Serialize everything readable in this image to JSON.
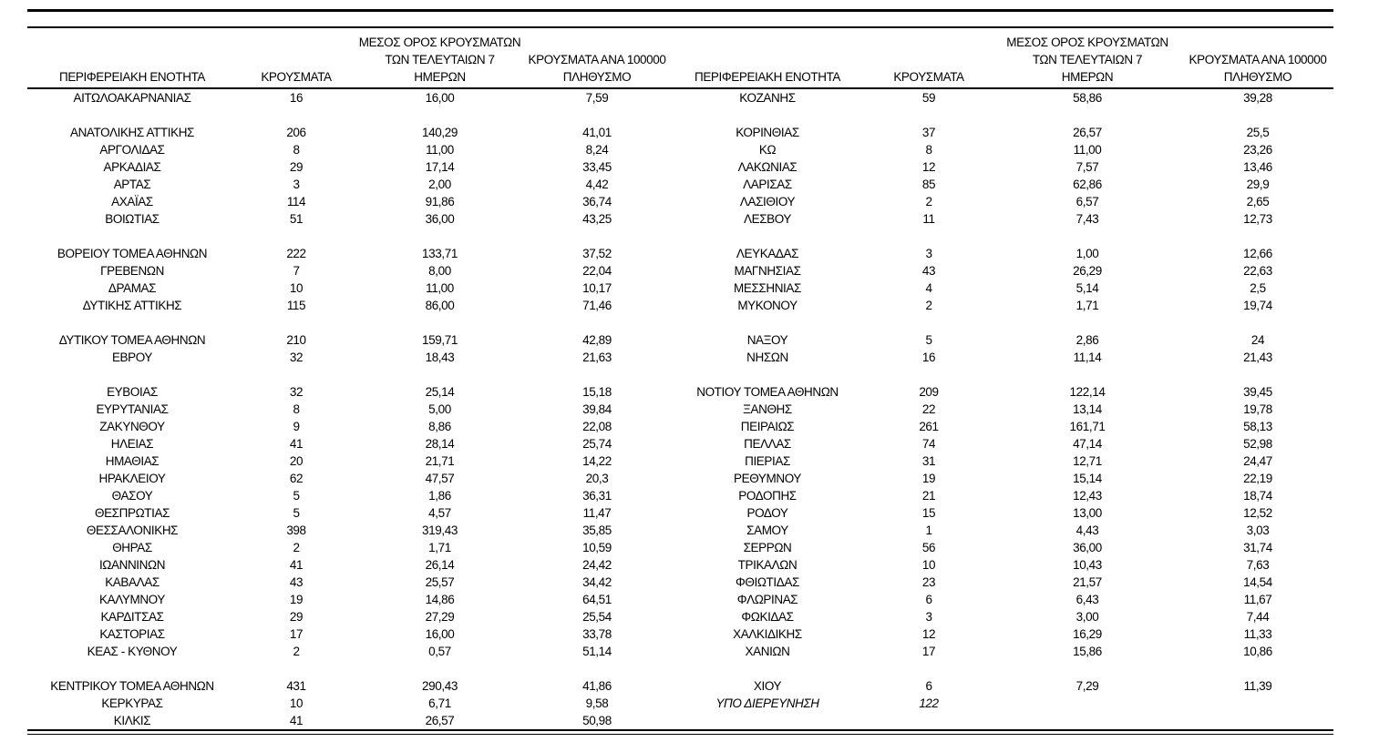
{
  "page": {
    "background_color": "#ffffff",
    "text_color": "#000000"
  },
  "table": {
    "headers": {
      "region": "ΠΕΡΙΦΕΡΕΙΑΚΗ ΕΝΟΤΗΤΑ",
      "cases": "ΚΡΟΥΣΜΑΤΑ",
      "avg7_line1": "ΜΕΣΟΣ ΟΡΟΣ ΚΡΟΥΣΜΑΤΩΝ",
      "avg7_line2": "ΤΩΝ ΤΕΛΕΥΤΑΙΩΝ 7",
      "avg7_line3": "ΗΜΕΡΩΝ",
      "per100k_line1": "ΚΡΟΥΣΜΑΤΑ ΑΝΑ 100000",
      "per100k_line2": "ΠΛΗΘΥΣΜΟ"
    },
    "rows": [
      {
        "left": [
          "ΑΙΤΩΛΟΑΚΑΡΝΑΝΙΑΣ",
          "16",
          "16,00",
          "7,59"
        ],
        "right": [
          "ΚΟΖΑΝΗΣ",
          "59",
          "58,86",
          "39,28"
        ]
      },
      {
        "left": null,
        "right": null
      },
      {
        "left": [
          "ΑΝΑΤΟΛΙΚΗΣ ΑΤΤΙΚΗΣ",
          "206",
          "140,29",
          "41,01"
        ],
        "right": [
          "ΚΟΡΙΝΘΙΑΣ",
          "37",
          "26,57",
          "25,5"
        ]
      },
      {
        "left": [
          "ΑΡΓΟΛΙΔΑΣ",
          "8",
          "11,00",
          "8,24"
        ],
        "right": [
          "ΚΩ",
          "8",
          "11,00",
          "23,26"
        ]
      },
      {
        "left": [
          "ΑΡΚΑΔΙΑΣ",
          "29",
          "17,14",
          "33,45"
        ],
        "right": [
          "ΛΑΚΩΝΙΑΣ",
          "12",
          "7,57",
          "13,46"
        ]
      },
      {
        "left": [
          "ΑΡΤΑΣ",
          "3",
          "2,00",
          "4,42"
        ],
        "right": [
          "ΛΑΡΙΣΑΣ",
          "85",
          "62,86",
          "29,9"
        ]
      },
      {
        "left": [
          "ΑΧΑΪΑΣ",
          "114",
          "91,86",
          "36,74"
        ],
        "right": [
          "ΛΑΣΙΘΙΟΥ",
          "2",
          "6,57",
          "2,65"
        ]
      },
      {
        "left": [
          "ΒΟΙΩΤΙΑΣ",
          "51",
          "36,00",
          "43,25"
        ],
        "right": [
          "ΛΕΣΒΟΥ",
          "11",
          "7,43",
          "12,73"
        ]
      },
      {
        "left": null,
        "right": null
      },
      {
        "left": [
          "ΒΟΡΕΙΟΥ ΤΟΜΕΑ ΑΘΗΝΩΝ",
          "222",
          "133,71",
          "37,52"
        ],
        "right": [
          "ΛΕΥΚΑΔΑΣ",
          "3",
          "1,00",
          "12,66"
        ]
      },
      {
        "left": [
          "ΓΡΕΒΕΝΩΝ",
          "7",
          "8,00",
          "22,04"
        ],
        "right": [
          "ΜΑΓΝΗΣΙΑΣ",
          "43",
          "26,29",
          "22,63"
        ]
      },
      {
        "left": [
          "ΔΡΑΜΑΣ",
          "10",
          "11,00",
          "10,17"
        ],
        "right": [
          "ΜΕΣΣΗΝΙΑΣ",
          "4",
          "5,14",
          "2,5"
        ]
      },
      {
        "left": [
          "ΔΥΤΙΚΗΣ ΑΤΤΙΚΗΣ",
          "115",
          "86,00",
          "71,46"
        ],
        "right": [
          "ΜΥΚΟΝΟΥ",
          "2",
          "1,71",
          "19,74"
        ]
      },
      {
        "left": null,
        "right": null
      },
      {
        "left": [
          "ΔΥΤΙΚΟΥ ΤΟΜΕΑ ΑΘΗΝΩΝ",
          "210",
          "159,71",
          "42,89"
        ],
        "right": [
          "ΝΑΞΟΥ",
          "5",
          "2,86",
          "24"
        ]
      },
      {
        "left": [
          "ΕΒΡΟΥ",
          "32",
          "18,43",
          "21,63"
        ],
        "right": [
          "ΝΗΣΩΝ",
          "16",
          "11,14",
          "21,43"
        ]
      },
      {
        "left": null,
        "right": null
      },
      {
        "left": [
          "ΕΥΒΟΙΑΣ",
          "32",
          "25,14",
          "15,18"
        ],
        "right": [
          "ΝΟΤΙΟΥ ΤΟΜΕΑ ΑΘΗΝΩΝ",
          "209",
          "122,14",
          "39,45"
        ]
      },
      {
        "left": [
          "ΕΥΡΥΤΑΝΙΑΣ",
          "8",
          "5,00",
          "39,84"
        ],
        "right": [
          "ΞΑΝΘΗΣ",
          "22",
          "13,14",
          "19,78"
        ]
      },
      {
        "left": [
          "ΖΑΚΥΝΘΟΥ",
          "9",
          "8,86",
          "22,08"
        ],
        "right": [
          "ΠΕΙΡΑΙΩΣ",
          "261",
          "161,71",
          "58,13"
        ]
      },
      {
        "left": [
          "ΗΛΕΙΑΣ",
          "41",
          "28,14",
          "25,74"
        ],
        "right": [
          "ΠΕΛΛΑΣ",
          "74",
          "47,14",
          "52,98"
        ]
      },
      {
        "left": [
          "ΗΜΑΘΙΑΣ",
          "20",
          "21,71",
          "14,22"
        ],
        "right": [
          "ΠΙΕΡΙΑΣ",
          "31",
          "12,71",
          "24,47"
        ]
      },
      {
        "left": [
          "ΗΡΑΚΛΕΙΟΥ",
          "62",
          "47,57",
          "20,3"
        ],
        "right": [
          "ΡΕΘΥΜΝΟΥ",
          "19",
          "15,14",
          "22,19"
        ]
      },
      {
        "left": [
          "ΘΑΣΟΥ",
          "5",
          "1,86",
          "36,31"
        ],
        "right": [
          "ΡΟΔΟΠΗΣ",
          "21",
          "12,43",
          "18,74"
        ]
      },
      {
        "left": [
          "ΘΕΣΠΡΩΤΙΑΣ",
          "5",
          "4,57",
          "11,47"
        ],
        "right": [
          "ΡΟΔΟΥ",
          "15",
          "13,00",
          "12,52"
        ]
      },
      {
        "left": [
          "ΘΕΣΣΑΛΟΝΙΚΗΣ",
          "398",
          "319,43",
          "35,85"
        ],
        "right": [
          "ΣΑΜΟΥ",
          "1",
          "4,43",
          "3,03"
        ]
      },
      {
        "left": [
          "ΘΗΡΑΣ",
          "2",
          "1,71",
          "10,59"
        ],
        "right": [
          "ΣΕΡΡΩΝ",
          "56",
          "36,00",
          "31,74"
        ]
      },
      {
        "left": [
          "ΙΩΑΝΝΙΝΩΝ",
          "41",
          "26,14",
          "24,42"
        ],
        "right": [
          "ΤΡΙΚΑΛΩΝ",
          "10",
          "10,43",
          "7,63"
        ]
      },
      {
        "left": [
          "ΚΑΒΑΛΑΣ",
          "43",
          "25,57",
          "34,42"
        ],
        "right": [
          "ΦΘΙΩΤΙΔΑΣ",
          "23",
          "21,57",
          "14,54"
        ]
      },
      {
        "left": [
          "ΚΑΛΥΜΝΟΥ",
          "19",
          "14,86",
          "64,51"
        ],
        "right": [
          "ΦΛΩΡΙΝΑΣ",
          "6",
          "6,43",
          "11,67"
        ]
      },
      {
        "left": [
          "ΚΑΡΔΙΤΣΑΣ",
          "29",
          "27,29",
          "25,54"
        ],
        "right": [
          "ΦΩΚΙΔΑΣ",
          "3",
          "3,00",
          "7,44"
        ]
      },
      {
        "left": [
          "ΚΑΣΤΟΡΙΑΣ",
          "17",
          "16,00",
          "33,78"
        ],
        "right": [
          "ΧΑΛΚΙΔΙΚΗΣ",
          "12",
          "16,29",
          "11,33"
        ]
      },
      {
        "left": [
          "ΚΕΑΣ - ΚΥΘΝΟΥ",
          "2",
          "0,57",
          "51,14"
        ],
        "right": [
          "ΧΑΝΙΩΝ",
          "17",
          "15,86",
          "10,86"
        ]
      },
      {
        "left": null,
        "right": null
      },
      {
        "left": [
          "ΚΕΝΤΡΙΚΟΥ ΤΟΜΕΑ ΑΘΗΝΩΝ",
          "431",
          "290,43",
          "41,86"
        ],
        "right": [
          "ΧΙΟΥ",
          "6",
          "7,29",
          "11,39"
        ]
      },
      {
        "left": [
          "ΚΕΡΚΥΡΑΣ",
          "10",
          "6,71",
          "9,58"
        ],
        "right": [
          "ΥΠΟ ΔΙΕΡΕΥΝΗΣΗ",
          "122",
          "",
          ""
        ],
        "right_italic": true
      },
      {
        "left": [
          "ΚΙΛΚΙΣ",
          "41",
          "26,57",
          "50,98"
        ],
        "right": null
      }
    ]
  }
}
